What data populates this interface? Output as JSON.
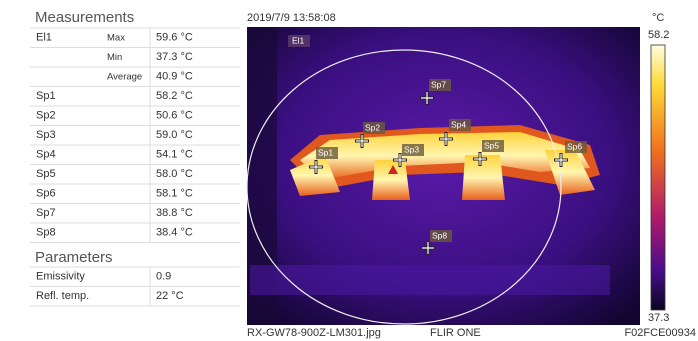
{
  "measurements": {
    "title": "Measurements",
    "area": {
      "name": "El1",
      "stats": [
        [
          "Max",
          "59.6 °C"
        ],
        [
          "Min",
          "37.3 °C"
        ],
        [
          "Average",
          "40.9 °C"
        ]
      ]
    },
    "spots": [
      [
        "Sp1",
        "58.2 °C"
      ],
      [
        "Sp2",
        "50.6 °C"
      ],
      [
        "Sp3",
        "59.0 °C"
      ],
      [
        "Sp4",
        "54.1 °C"
      ],
      [
        "Sp5",
        "58.0 °C"
      ],
      [
        "Sp6",
        "58.1 °C"
      ],
      [
        "Sp7",
        "38.8 °C"
      ],
      [
        "Sp8",
        "38.4 °C"
      ]
    ]
  },
  "parameters": {
    "title": "Parameters",
    "rows": [
      [
        "Emissivity",
        "0.9"
      ],
      [
        "Refl. temp.",
        "22  °C"
      ]
    ]
  },
  "image": {
    "timestamp": "2019/7/9 13:58:08",
    "area_label": "El1",
    "spot_labels": [
      "Sp1",
      "Sp2",
      "Sp3",
      "Sp4",
      "Sp5",
      "Sp6",
      "Sp7",
      "Sp8"
    ],
    "scale": {
      "unit": "°C",
      "max": "58.2",
      "min": "37.3"
    },
    "filename": "RX-GW78-900Z-LM301.jpg",
    "camera": "FLIR ONE",
    "serial": "F02FCE00934"
  }
}
